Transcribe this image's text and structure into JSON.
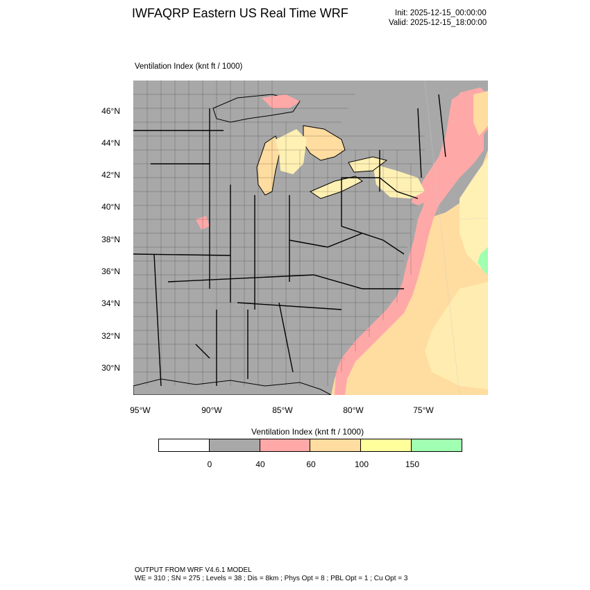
{
  "header": {
    "title": "IWFAQRP Eastern US Real Time WRF",
    "init": "Init: 2025-12-15_00:00:00",
    "valid": "Valid: 2025-12-15_18:00:00"
  },
  "map": {
    "variable_label": "Ventilation Index   (knt ft / 1000)",
    "lat_labels": [
      "46°N",
      "44°N",
      "42°N",
      "40°N",
      "38°N",
      "36°N",
      "34°N",
      "32°N",
      "30°N"
    ],
    "lon_labels": [
      "95°W",
      "90°W",
      "85°W",
      "80°W",
      "75°W"
    ],
    "colors": {
      "land_background": "#a8a8a8",
      "water_unfilled": "#a8a8a8",
      "ocean_pink": "#ffa8a8",
      "ocean_tan": "#ffdca0",
      "ocean_light": "#fff0b4",
      "green": "#a0ffb0",
      "yellow": "#ffff9c"
    }
  },
  "colorbar": {
    "title": "Ventilation Index  (knt ft / 1000)",
    "colors": [
      "#ffffff",
      "#a8a8a8",
      "#ffa8a8",
      "#ffdca0",
      "#ffff9c",
      "#a0ffb0"
    ],
    "ticks": [
      "0",
      "40",
      "60",
      "100",
      "150"
    ]
  },
  "footer": {
    "line1": "OUTPUT FROM WRF V4.6.1 MODEL",
    "line2": "WE = 310 ; SN = 275 ; Levels = 38 ; Dis = 8km ; Phys Opt = 8 ; PBL Opt = 1 ; Cu Opt = 3"
  }
}
